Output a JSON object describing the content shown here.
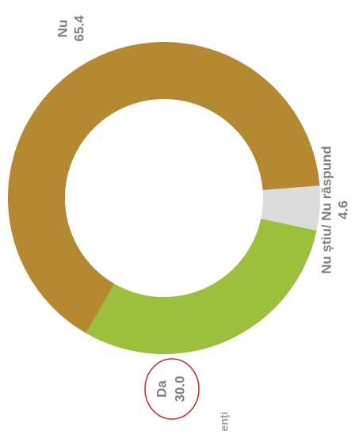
{
  "chart_data": {
    "type": "donut",
    "categories": [
      "Da",
      "Nu",
      "Nu știu/ Nu răspund"
    ],
    "values": [
      30.0,
      65.4,
      4.6
    ],
    "value_labels": [
      "30.0",
      "65.4",
      "4.6"
    ],
    "colors": [
      "#9bc13c",
      "#b5892f",
      "#dcdcdc"
    ],
    "footer_fragment": "enți"
  }
}
